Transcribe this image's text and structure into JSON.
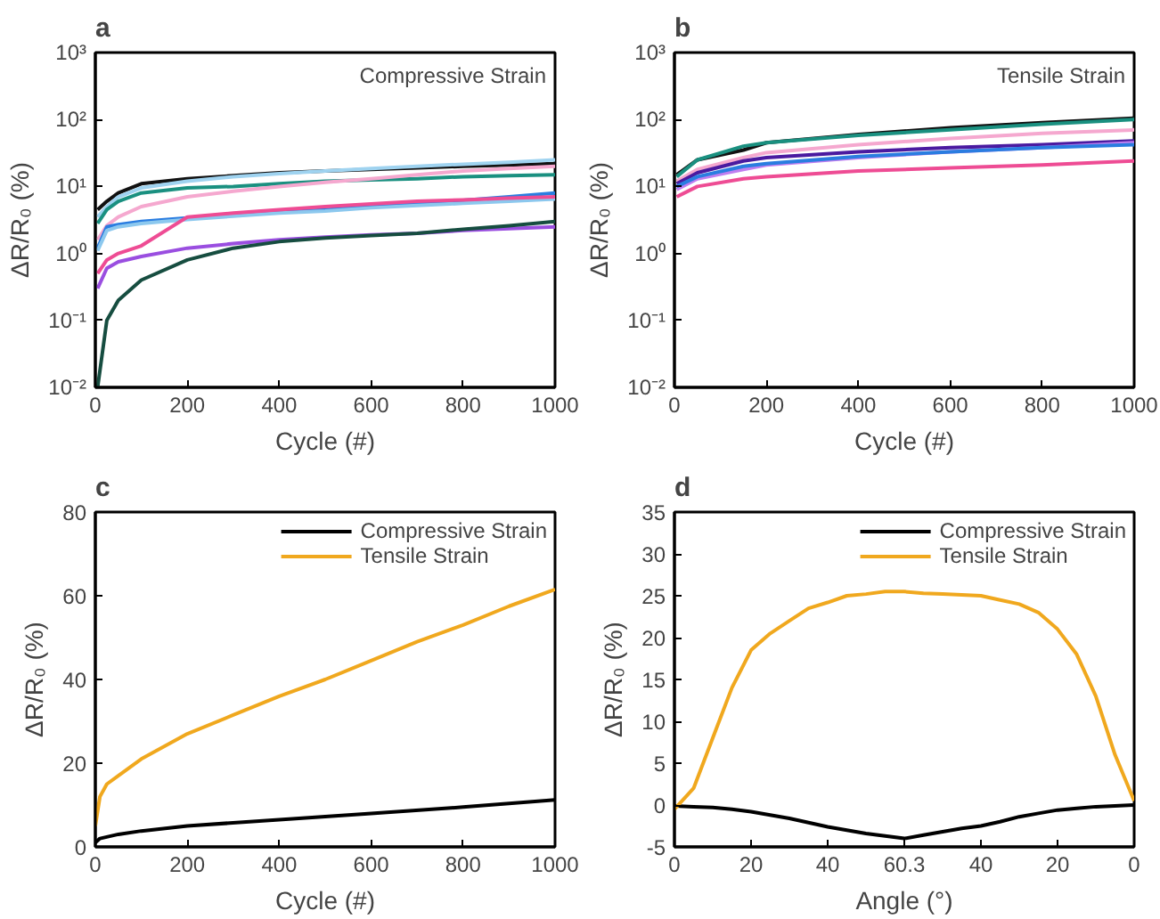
{
  "chart_data": [
    {
      "type": "line",
      "title": "a",
      "xlabel": "Cycle (#)",
      "ylabel": "ΔR/R₀ (%)",
      "annotations": [
        "Compressive Strain"
      ],
      "log": "y",
      "legend": false,
      "grid": false,
      "xlim": [
        0,
        1000
      ],
      "xticks": [
        0,
        200,
        400,
        600,
        800,
        1000
      ],
      "ylim": [
        0.01,
        1000
      ],
      "yticks": [
        {
          "value": 0.01,
          "label": "10⁻²"
        },
        {
          "value": 0.1,
          "label": "10⁻¹"
        },
        {
          "value": 1,
          "label": "10⁰"
        },
        {
          "value": 10,
          "label": "10¹"
        },
        {
          "value": 100,
          "label": "10²"
        },
        {
          "value": 1000,
          "label": "10³"
        }
      ],
      "x": [
        5,
        25,
        50,
        100,
        200,
        300,
        400,
        500,
        600,
        700,
        800,
        900,
        1000
      ],
      "series": [
        {
          "color": "#111111",
          "values": [
            4.5,
            6,
            8,
            11,
            13,
            14.5,
            16,
            17,
            18,
            19,
            20,
            21,
            22
          ]
        },
        {
          "color": "#9fd3f0",
          "values": [
            3.5,
            5,
            7,
            9.5,
            12,
            14,
            15.5,
            17,
            18.5,
            20,
            21.5,
            23,
            25
          ]
        },
        {
          "color": "#1a9080",
          "values": [
            2.8,
            4.5,
            6,
            8,
            9.5,
            10,
            11,
            12,
            12.5,
            13,
            14,
            14.5,
            15
          ]
        },
        {
          "color": "#f5a8cf",
          "values": [
            1.6,
            2.6,
            3.5,
            5,
            7,
            8.5,
            10,
            11.5,
            13,
            15,
            17,
            18.5,
            20
          ]
        },
        {
          "color": "#2a7de0",
          "values": [
            1.2,
            2.5,
            2.7,
            3,
            3.4,
            3.8,
            4.1,
            4.5,
            5,
            5.5,
            6.2,
            7,
            8
          ]
        },
        {
          "color": "#8cc8ee",
          "values": [
            1.1,
            2.2,
            2.5,
            2.8,
            3.2,
            3.6,
            4,
            4.3,
            4.8,
            5.2,
            5.6,
            6,
            6.5
          ]
        },
        {
          "color": "#ee4c94",
          "values": [
            0.5,
            0.8,
            1,
            1.3,
            3.5,
            4,
            4.5,
            5,
            5.5,
            6,
            6.3,
            6.7,
            7
          ]
        },
        {
          "color": "#9a4ee0",
          "values": [
            0.3,
            0.6,
            0.75,
            0.9,
            1.2,
            1.4,
            1.6,
            1.75,
            1.9,
            2,
            2.2,
            2.35,
            2.5
          ]
        },
        {
          "color": "#164d40",
          "values": [
            0.01,
            0.1,
            0.2,
            0.4,
            0.8,
            1.2,
            1.5,
            1.7,
            1.85,
            2,
            2.3,
            2.6,
            3
          ]
        }
      ]
    },
    {
      "type": "line",
      "title": "b",
      "xlabel": "Cycle (#)",
      "ylabel": "ΔR/R₀ (%)",
      "annotations": [
        "Tensile Strain"
      ],
      "log": "y",
      "legend": false,
      "grid": false,
      "xlim": [
        0,
        1000
      ],
      "xticks": [
        0,
        200,
        400,
        600,
        800,
        1000
      ],
      "ylim": [
        0.01,
        1000
      ],
      "yticks": [
        {
          "value": 0.01,
          "label": "10⁻²"
        },
        {
          "value": 0.1,
          "label": "10⁻¹"
        },
        {
          "value": 1,
          "label": "10⁰"
        },
        {
          "value": 10,
          "label": "10¹"
        },
        {
          "value": 100,
          "label": "10²"
        },
        {
          "value": 1000,
          "label": "10³"
        }
      ],
      "x": [
        5,
        50,
        150,
        200,
        400,
        600,
        800,
        1000
      ],
      "series": [
        {
          "color": "#111111",
          "values": [
            15,
            25,
            35,
            45,
            60,
            75,
            90,
            105
          ]
        },
        {
          "color": "#1a9080",
          "values": [
            14,
            25,
            40,
            45,
            58,
            70,
            85,
            100
          ]
        },
        {
          "color": "#f5a8cf",
          "values": [
            12,
            18,
            27,
            32,
            42,
            52,
            62,
            70
          ]
        },
        {
          "color": "#4a1aa0",
          "values": [
            11,
            16,
            24,
            27,
            33,
            38,
            42,
            48
          ]
        },
        {
          "color": "#c07ef0",
          "values": [
            9,
            13,
            18,
            21,
            27,
            33,
            38,
            45
          ]
        },
        {
          "color": "#2a7de0",
          "values": [
            10,
            14,
            20,
            22,
            28,
            33,
            38,
            42
          ]
        },
        {
          "color": "#ee4c94",
          "values": [
            7,
            10,
            13,
            14,
            17,
            19,
            21,
            24
          ]
        }
      ]
    },
    {
      "type": "line",
      "title": "c",
      "xlabel": "Cycle (#)",
      "ylabel": "ΔR/R₀ (%)",
      "legend": "top right",
      "grid": false,
      "xlim": [
        0,
        1000
      ],
      "xticks": [
        0,
        200,
        400,
        600,
        800,
        1000
      ],
      "ylim": [
        0,
        80
      ],
      "yticks": [
        0,
        20,
        40,
        60,
        80
      ],
      "series": [
        {
          "name": "Compressive Strain",
          "color": "#000000",
          "x": [
            0,
            10,
            50,
            100,
            200,
            400,
            600,
            800,
            1000
          ],
          "values": [
            1,
            2,
            3,
            3.8,
            5,
            6.5,
            8,
            9.5,
            11.2
          ]
        },
        {
          "name": "Tensile Strain",
          "color": "#f0a81e",
          "x": [
            0,
            10,
            25,
            50,
            100,
            200,
            300,
            400,
            500,
            600,
            700,
            800,
            900,
            1000
          ],
          "values": [
            5,
            12,
            15,
            17,
            21,
            27,
            31.5,
            36,
            40,
            44.5,
            49,
            53,
            57.5,
            61.5
          ]
        }
      ]
    },
    {
      "type": "line",
      "title": "d",
      "xlabel": "Angle (°)",
      "ylabel": "ΔR/R₀ (%)",
      "legend": "top right",
      "grid": false,
      "categories": [
        "0",
        null,
        null,
        null,
        "20",
        null,
        null,
        null,
        "40",
        null,
        null,
        null,
        "60.3",
        null,
        null,
        null,
        "40",
        null,
        null,
        null,
        "20",
        null,
        null,
        null,
        "0"
      ],
      "ylim": [
        -5,
        35
      ],
      "yticks": [
        -5,
        0,
        5,
        10,
        15,
        20,
        25,
        30,
        35
      ],
      "series": [
        {
          "name": "Compressive Strain",
          "color": "#000000",
          "values": [
            -0.1,
            -0.2,
            -0.3,
            -0.5,
            -0.8,
            -1.2,
            -1.6,
            -2.1,
            -2.6,
            -3,
            -3.4,
            -3.7,
            -4,
            -3.6,
            -3.2,
            -2.8,
            -2.5,
            -2,
            -1.4,
            -1,
            -0.6,
            -0.4,
            -0.2,
            -0.1,
            0
          ]
        },
        {
          "name": "Tensile Strain",
          "color": "#f0a81e",
          "values": [
            -0.5,
            2,
            8,
            14,
            18.5,
            20.5,
            22,
            23.5,
            24.2,
            25,
            25.2,
            25.5,
            25.5,
            25.3,
            25.2,
            25.1,
            25,
            24.5,
            24,
            23,
            21,
            18,
            13,
            6,
            0.5
          ]
        }
      ]
    }
  ]
}
